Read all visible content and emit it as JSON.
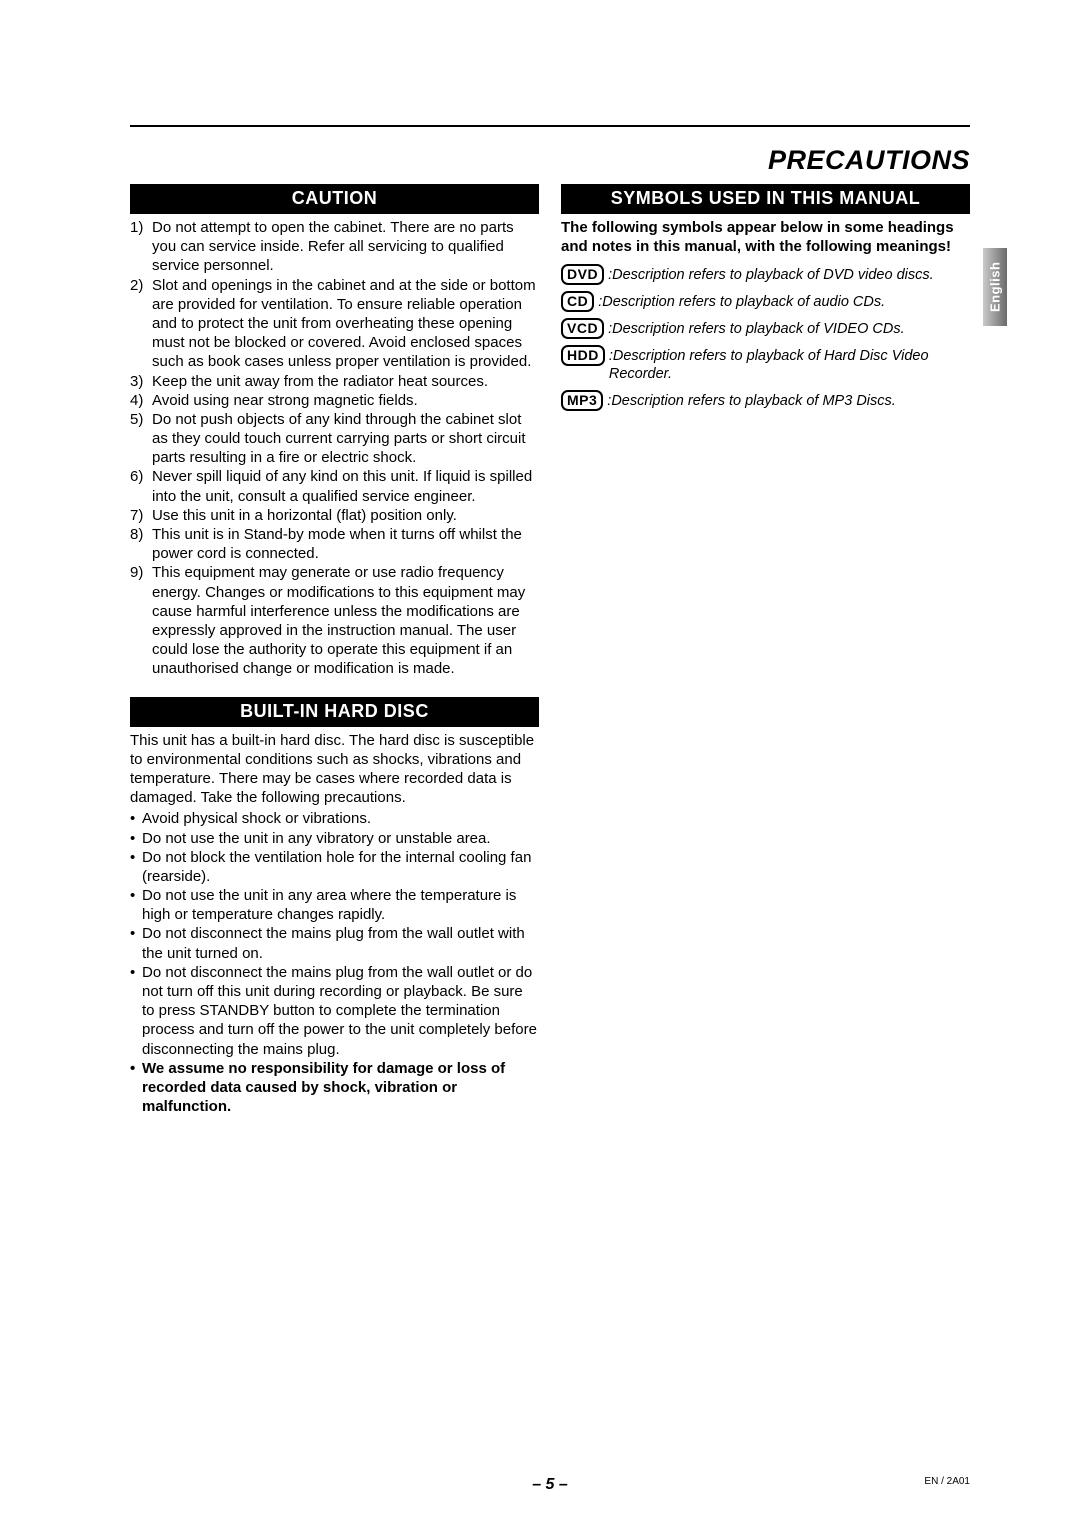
{
  "page_title": "PRECAUTIONS",
  "language_tab": "English",
  "page_number": "– 5 –",
  "doc_code": "EN / 2A01",
  "left": {
    "caution_header": "CAUTION",
    "caution_items": [
      {
        "n": "1)",
        "t": "Do not attempt to open the cabinet. There are no parts you can service inside. Refer all servicing to qualified service personnel."
      },
      {
        "n": "2)",
        "t": "Slot and openings in the cabinet and at the side or bottom are provided for ventilation. To ensure reliable operation and to protect the unit from overheating these opening must not be blocked or covered. Avoid enclosed spaces such as book cases unless proper ventilation is provided."
      },
      {
        "n": "3)",
        "t": "Keep the unit away from the radiator heat sources."
      },
      {
        "n": "4)",
        "t": "Avoid using near strong magnetic fields."
      },
      {
        "n": "5)",
        "t": "Do not push objects of any kind through the cabinet slot as they could touch current carrying parts or short circuit parts resulting in a fire or electric shock."
      },
      {
        "n": "6)",
        "t": "Never spill liquid of any kind on this unit. If liquid is spilled into the unit, consult a qualified service engineer."
      },
      {
        "n": "7)",
        "t": "Use this unit in a horizontal (flat) position only."
      },
      {
        "n": "8)",
        "t": "This unit is in Stand-by mode when it turns off whilst the power cord is connected."
      },
      {
        "n": "9)",
        "t": "This equipment may generate or use radio frequency energy. Changes or modifications to this equipment may cause harmful interference unless the modifications are expressly approved in the instruction manual. The user could lose the authority to operate this equipment if an unauthorised change or modification is made."
      }
    ],
    "harddisc_header": "BUILT-IN HARD DISC",
    "harddisc_intro": "This unit has a built-in hard disc. The hard disc is susceptible to environmental conditions such as shocks, vibrations and temperature.  There may be cases where recorded data is damaged.  Take the following precautions.",
    "harddisc_bullets": [
      "Avoid physical shock or vibrations.",
      "Do not use the unit in any vibratory or unstable area.",
      "Do not block the ventilation hole for the internal cooling fan (rearside).",
      "Do not use the unit in any area where the temperature is high or temperature changes rapidly.",
      "Do not disconnect the mains plug from the wall outlet with the unit turned on.",
      "Do not disconnect the mains plug from the wall outlet or do not turn off this unit during recording or playback.  Be sure to press STANDBY button to complete the termination process and turn off the power to the unit completely before disconnecting the mains plug."
    ],
    "harddisc_bold": "We assume no responsibility for damage or loss of recorded data caused by shock, vibration or malfunction."
  },
  "right": {
    "symbols_header": "SYMBOLS USED IN THIS MANUAL",
    "symbols_intro": "The following symbols appear below in some headings and notes in this manual, with the following meanings!",
    "symbols": [
      {
        "badge": "DVD",
        "desc": ":Description refers to playback of DVD video discs."
      },
      {
        "badge": "CD",
        "desc": ":Description refers to playback of audio CDs."
      },
      {
        "badge": "VCD",
        "desc": ":Description refers to playback of VIDEO CDs."
      },
      {
        "badge": "HDD",
        "desc": ":Description refers to playback of Hard Disc Video Recorder."
      },
      {
        "badge": "MP3",
        "desc": ":Description refers to playback of MP3 Discs."
      }
    ]
  }
}
